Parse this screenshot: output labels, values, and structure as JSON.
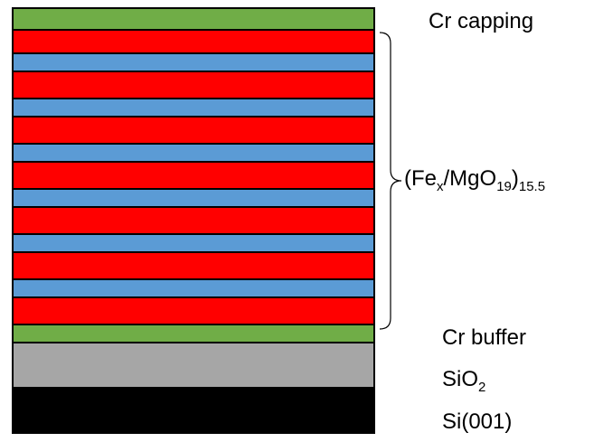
{
  "diagram": {
    "colors": {
      "fe": "#ff0000",
      "mgo": "#5b9bd5",
      "cr": "#70ad47",
      "sio2": "#a6a6a6",
      "si": "#000000",
      "outline": "#000000"
    },
    "stack_top_to_bottom": [
      {
        "material": "Cr capping",
        "color_key": "cr"
      },
      {
        "material": "Fe",
        "color_key": "fe"
      },
      {
        "material": "MgO",
        "color_key": "mgo"
      },
      {
        "material": "Fe",
        "color_key": "fe"
      },
      {
        "material": "MgO",
        "color_key": "mgo"
      },
      {
        "material": "Fe",
        "color_key": "fe"
      },
      {
        "material": "MgO",
        "color_key": "mgo"
      },
      {
        "material": "Fe",
        "color_key": "fe"
      },
      {
        "material": "MgO",
        "color_key": "mgo"
      },
      {
        "material": "Fe",
        "color_key": "fe"
      },
      {
        "material": "MgO",
        "color_key": "mgo"
      },
      {
        "material": "Fe",
        "color_key": "fe"
      },
      {
        "material": "MgO",
        "color_key": "mgo"
      },
      {
        "material": "Fe",
        "color_key": "fe"
      },
      {
        "material": "Cr buffer",
        "color_key": "cr"
      },
      {
        "material": "SiO2",
        "color_key": "sio2"
      },
      {
        "material": "Si(001)",
        "color_key": "si"
      }
    ],
    "labels": {
      "cr_capping": "Cr capping",
      "multilayer": {
        "open": "(Fe",
        "x_sub": "x",
        "mid": "/MgO",
        "n_sub": "19",
        "close": ")",
        "repeat_sub": "15.5"
      },
      "cr_buffer": "Cr buffer",
      "sio2": {
        "base": "SiO",
        "sub": "2"
      },
      "si": "Si(001)"
    }
  }
}
